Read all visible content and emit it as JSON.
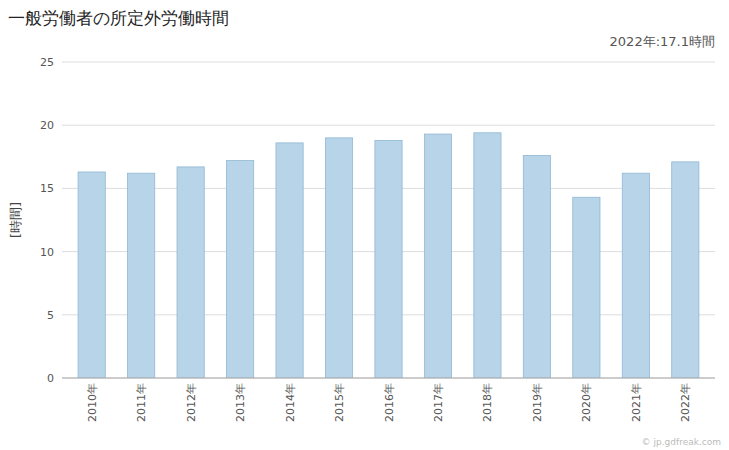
{
  "chart_data": {
    "type": "bar",
    "title": "一般労働者の所定外労働時間",
    "ylabel": "[時間]",
    "annotations": [
      "2022年:17.1時間",
      "© jp.gdfreak.com"
    ],
    "categories": [
      "2010年",
      "2011年",
      "2012年",
      "2013年",
      "2014年",
      "2015年",
      "2016年",
      "2017年",
      "2018年",
      "2019年",
      "2020年",
      "2021年",
      "2022年"
    ],
    "values": [
      16.3,
      16.2,
      16.7,
      17.2,
      18.6,
      19.0,
      18.8,
      19.3,
      19.4,
      17.6,
      14.3,
      16.2,
      17.1
    ],
    "color": "#b8d4e8",
    "ylim": [
      0,
      25
    ],
    "yticks": [
      0,
      5,
      10,
      15,
      20,
      25
    ],
    "grid": true
  }
}
